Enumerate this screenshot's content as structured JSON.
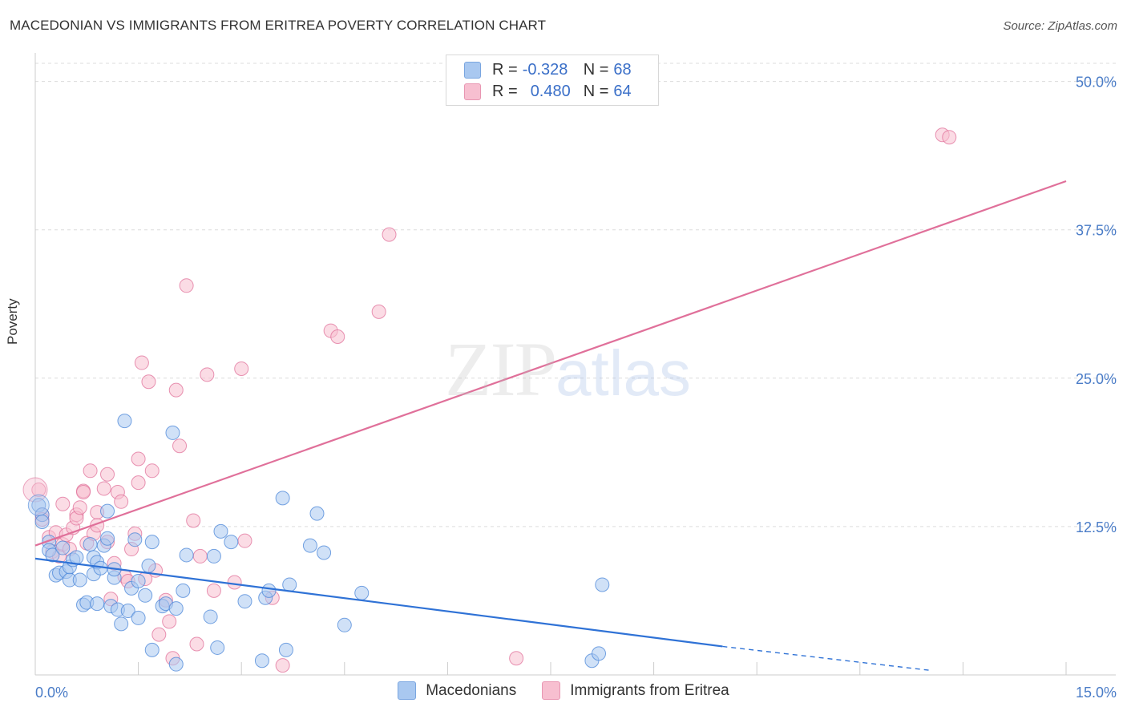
{
  "header": {
    "title": "MACEDONIAN VS IMMIGRANTS FROM ERITREA POVERTY CORRELATION CHART",
    "source": "Source: ZipAtlas.com"
  },
  "legend_top": {
    "rows": [
      {
        "r_label": "R =",
        "r_value": "-0.328",
        "n_label": "N =",
        "n_value": "68",
        "color": "#a9c8f0"
      },
      {
        "r_label": "R =",
        "r_value": "0.480",
        "n_label": "N =",
        "n_value": "64",
        "color": "#f7bfd0"
      }
    ]
  },
  "legend_bottom": {
    "items": [
      {
        "label": "Macedonians",
        "color": "#a9c8f0"
      },
      {
        "label": "Immigrants from Eritrea",
        "color": "#f7bfd0"
      }
    ]
  },
  "watermark": {
    "zip": "ZIP",
    "atlas": "atlas"
  },
  "chart_data": {
    "type": "scatter",
    "title": "MACEDONIAN VS IMMIGRANTS FROM ERITREA POVERTY CORRELATION CHART",
    "xlabel": "",
    "ylabel": "Poverty",
    "xlim": [
      0,
      15
    ],
    "ylim": [
      0,
      52
    ],
    "x_tick_labels": [
      "0.0%",
      "15.0%"
    ],
    "y_ticks": [
      12.5,
      25.0,
      37.5,
      50.0
    ],
    "y_tick_labels": [
      "12.5%",
      "25.0%",
      "37.5%",
      "50.0%"
    ],
    "grid": true,
    "legend_position": "top-center",
    "series": [
      {
        "name": "Macedonians",
        "color": "#4a86d8",
        "fill": "#a9c8f0",
        "R": -0.328,
        "N": 68,
        "trend": {
          "x": [
            0.0,
            10.0
          ],
          "y": [
            9.8,
            2.4
          ],
          "dashed_to": [
            13.0,
            0.4
          ]
        },
        "points": [
          [
            0.05,
            14.3
          ],
          [
            0.1,
            13.5
          ],
          [
            0.1,
            12.9
          ],
          [
            0.2,
            11.2
          ],
          [
            0.2,
            10.5
          ],
          [
            0.25,
            10.1
          ],
          [
            0.3,
            8.4
          ],
          [
            0.35,
            8.6
          ],
          [
            0.4,
            10.7
          ],
          [
            0.45,
            8.7
          ],
          [
            0.5,
            8.0
          ],
          [
            0.5,
            9.1
          ],
          [
            0.55,
            9.7
          ],
          [
            0.6,
            9.9
          ],
          [
            0.65,
            8.0
          ],
          [
            0.7,
            5.9
          ],
          [
            0.75,
            6.1
          ],
          [
            0.8,
            11.0
          ],
          [
            0.85,
            9.9
          ],
          [
            0.85,
            8.5
          ],
          [
            0.9,
            9.5
          ],
          [
            0.9,
            6.0
          ],
          [
            0.95,
            9.0
          ],
          [
            1.0,
            10.9
          ],
          [
            1.05,
            13.8
          ],
          [
            1.05,
            11.5
          ],
          [
            1.1,
            5.8
          ],
          [
            1.15,
            8.2
          ],
          [
            1.15,
            8.9
          ],
          [
            1.2,
            5.5
          ],
          [
            1.25,
            4.3
          ],
          [
            1.3,
            21.4
          ],
          [
            1.35,
            5.4
          ],
          [
            1.4,
            7.3
          ],
          [
            1.45,
            11.4
          ],
          [
            1.5,
            7.9
          ],
          [
            1.5,
            4.8
          ],
          [
            1.6,
            6.7
          ],
          [
            1.65,
            9.2
          ],
          [
            1.7,
            11.2
          ],
          [
            1.7,
            2.1
          ],
          [
            1.85,
            5.8
          ],
          [
            1.9,
            6.0
          ],
          [
            2.0,
            20.4
          ],
          [
            2.05,
            5.6
          ],
          [
            2.05,
            0.9
          ],
          [
            2.15,
            7.1
          ],
          [
            2.2,
            10.1
          ],
          [
            2.55,
            4.9
          ],
          [
            2.6,
            10.0
          ],
          [
            2.65,
            2.3
          ],
          [
            2.7,
            12.1
          ],
          [
            2.85,
            11.2
          ],
          [
            3.05,
            6.2
          ],
          [
            3.3,
            1.2
          ],
          [
            3.35,
            6.5
          ],
          [
            3.4,
            7.1
          ],
          [
            3.6,
            14.9
          ],
          [
            3.65,
            2.1
          ],
          [
            3.7,
            7.6
          ],
          [
            4.0,
            10.9
          ],
          [
            4.1,
            13.6
          ],
          [
            4.2,
            10.3
          ],
          [
            4.5,
            4.2
          ],
          [
            4.75,
            6.9
          ],
          [
            8.1,
            1.2
          ],
          [
            8.2,
            1.8
          ],
          [
            8.25,
            7.6
          ]
        ]
      },
      {
        "name": "Immigrants from Eritrea",
        "color": "#e0709a",
        "fill": "#f7bfd0",
        "R": 0.48,
        "N": 64,
        "trend": {
          "x": [
            0.0,
            15.0
          ],
          "y": [
            10.9,
            41.6
          ]
        },
        "points": [
          [
            0.05,
            15.6
          ],
          [
            0.1,
            13.5
          ],
          [
            0.1,
            13.1
          ],
          [
            0.2,
            11.6
          ],
          [
            0.25,
            10.4
          ],
          [
            0.3,
            12.0
          ],
          [
            0.35,
            10.0
          ],
          [
            0.4,
            11.0
          ],
          [
            0.4,
            14.4
          ],
          [
            0.45,
            11.8
          ],
          [
            0.5,
            10.6
          ],
          [
            0.55,
            12.4
          ],
          [
            0.6,
            13.5
          ],
          [
            0.6,
            13.2
          ],
          [
            0.65,
            14.1
          ],
          [
            0.7,
            15.5
          ],
          [
            0.75,
            11.1
          ],
          [
            0.7,
            15.4
          ],
          [
            0.8,
            17.2
          ],
          [
            0.85,
            11.9
          ],
          [
            0.9,
            13.7
          ],
          [
            0.9,
            12.6
          ],
          [
            1.0,
            15.7
          ],
          [
            1.05,
            11.2
          ],
          [
            1.05,
            16.9
          ],
          [
            1.1,
            6.4
          ],
          [
            1.15,
            9.4
          ],
          [
            1.2,
            15.4
          ],
          [
            1.25,
            14.6
          ],
          [
            1.3,
            8.3
          ],
          [
            1.35,
            7.9
          ],
          [
            1.4,
            10.6
          ],
          [
            1.45,
            11.9
          ],
          [
            1.5,
            16.2
          ],
          [
            1.5,
            18.2
          ],
          [
            1.55,
            26.3
          ],
          [
            1.6,
            8.1
          ],
          [
            1.65,
            24.7
          ],
          [
            1.7,
            17.2
          ],
          [
            1.75,
            8.8
          ],
          [
            1.8,
            3.4
          ],
          [
            1.9,
            6.3
          ],
          [
            1.95,
            4.5
          ],
          [
            2.0,
            1.4
          ],
          [
            2.05,
            24.0
          ],
          [
            2.1,
            19.3
          ],
          [
            2.2,
            32.8
          ],
          [
            2.3,
            13.0
          ],
          [
            2.35,
            2.6
          ],
          [
            2.4,
            10.0
          ],
          [
            2.5,
            25.3
          ],
          [
            2.6,
            7.1
          ],
          [
            2.9,
            7.8
          ],
          [
            3.0,
            25.8
          ],
          [
            3.05,
            11.3
          ],
          [
            3.45,
            6.5
          ],
          [
            3.6,
            0.8
          ],
          [
            4.3,
            29.0
          ],
          [
            4.4,
            28.5
          ],
          [
            5.0,
            30.6
          ],
          [
            5.15,
            37.1
          ],
          [
            7.0,
            1.4
          ],
          [
            13.2,
            45.5
          ],
          [
            13.3,
            45.3
          ]
        ]
      }
    ]
  }
}
